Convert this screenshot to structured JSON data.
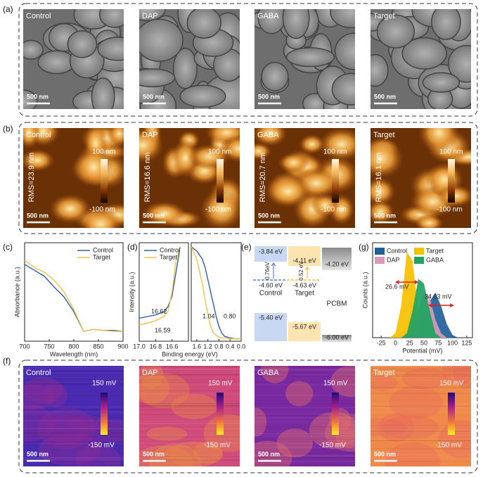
{
  "panel_labels": [
    "(a)",
    "(b)",
    "(c)",
    "(d)",
    "(e)",
    "(f)",
    "(g)"
  ],
  "sem_images": [
    {
      "label": "Control",
      "scale_bar": "500 nm"
    },
    {
      "label": "DAP",
      "scale_bar": "500 nm"
    },
    {
      "label": "GABA",
      "scale_bar": "500 nm"
    },
    {
      "label": "Target",
      "scale_bar": "500 nm"
    }
  ],
  "afm_images": [
    {
      "label": "Control",
      "rms": "RMS=23.9 nm",
      "scale_max": "100 nm",
      "scale_min": "-100 nm",
      "scale_bar": "500 nm"
    },
    {
      "label": "DAP",
      "rms": "RMS=16.6 nm",
      "scale_max": "100 nm",
      "scale_min": "-100 nm",
      "scale_bar": "500 nm"
    },
    {
      "label": "GABA",
      "rms": "RMS=20.7 nm",
      "scale_max": "100 nm",
      "scale_min": "-100 nm",
      "scale_bar": "500 nm"
    },
    {
      "label": "Target",
      "rms": "RMS=16.1 nm",
      "scale_max": "100 nm",
      "scale_min": "-100 nm",
      "scale_bar": "500 nm"
    }
  ],
  "kpfm_images": [
    {
      "label": "Control",
      "scale_max": "150 mV",
      "scale_min": "-150 mV",
      "scale_bar": "500 nm"
    },
    {
      "label": "DAP",
      "scale_max": "150 mV",
      "scale_min": "-150 mV",
      "scale_bar": "500 nm"
    },
    {
      "label": "GABA",
      "scale_max": "150 mV",
      "scale_min": "-150 mV",
      "scale_bar": "500 nm"
    },
    {
      "label": "Target",
      "scale_max": "150 mV",
      "scale_min": "-150 mV",
      "scale_bar": "500 nm"
    }
  ],
  "energy_diagram": {
    "columns": [
      {
        "name": "Control",
        "cbm": "-3.84 eV",
        "fermi": "-4.60 eV",
        "offset": "0.76eV",
        "vbm": "-5.40 eV"
      },
      {
        "name": "Target",
        "cbm": "-4.11 eV",
        "fermi": "-4.63 eV",
        "offset": "0.52 eV",
        "vbm": "-5.67 eV"
      },
      {
        "name": "PCBM",
        "cbm": "-4.20 eV",
        "vbm": "-6.00 eV"
      }
    ]
  },
  "chart_data": [
    {
      "type": "line",
      "xlabel": "Wavelength (nm)",
      "ylabel": "Absorbance (a.u.)",
      "x": [
        700,
        720,
        740,
        760,
        780,
        800,
        820,
        840,
        860,
        880,
        900
      ],
      "series": [
        {
          "name": "Control",
          "color": "#2f5fa8",
          "values": [
            0.78,
            0.72,
            0.66,
            0.55,
            0.45,
            0.3,
            0.1,
            0.12,
            0.11,
            0.11,
            0.1
          ]
        },
        {
          "name": "Target",
          "color": "#f3c24a",
          "values": [
            0.82,
            0.75,
            0.7,
            0.62,
            0.5,
            0.32,
            0.1,
            0.12,
            0.11,
            0.1,
            0.1
          ]
        }
      ],
      "xlim": [
        700,
        900
      ],
      "ylim": [
        0,
        1
      ],
      "xticks": [
        700,
        750,
        800,
        850,
        900
      ],
      "legend": "upper right"
    },
    {
      "type": "line",
      "xlabel": "Binding energy (eV)",
      "ylabel": "Intensity (a.u.)",
      "x": [
        17.0,
        16.9,
        16.8,
        16.7,
        16.65,
        16.6,
        16.55,
        16.5
      ],
      "series": [
        {
          "name": "Control",
          "color": "#2f5fa8",
          "values": [
            0.28,
            0.3,
            0.32,
            0.36,
            0.42,
            0.55,
            0.85,
            1.15
          ]
        },
        {
          "name": "Target",
          "color": "#f3c24a",
          "values": [
            0.2,
            0.22,
            0.25,
            0.3,
            0.36,
            0.6,
            1.0,
            1.15
          ]
        }
      ],
      "xlim": [
        17.0,
        16.4
      ],
      "ylim": [
        0,
        1.2
      ],
      "xticks": [
        {
          "value": 17,
          "label": "17.0"
        },
        16.8,
        16.6
      ],
      "annotations": [
        "16.62",
        "16.59"
      ],
      "legend": "upper left"
    },
    {
      "type": "line",
      "x": [
        1.8,
        1.6,
        1.4,
        1.3,
        1.2,
        1.1,
        1.0,
        0.9,
        0.8,
        0.7,
        0.6,
        0.4,
        0.2,
        0.0
      ],
      "series": [
        {
          "color": "#2f5fa8",
          "values": [
            1.15,
            1.1,
            1.0,
            0.9,
            0.75,
            0.6,
            0.45,
            0.3,
            0.18,
            0.1,
            0.06,
            0.04,
            0.03,
            0.03
          ]
        },
        {
          "color": "#f3c24a",
          "values": [
            1.15,
            1.0,
            0.7,
            0.5,
            0.33,
            0.18,
            0.1,
            0.07,
            0.05,
            0.04,
            0.04,
            0.03,
            0.03,
            0.03
          ]
        }
      ],
      "xlim": [
        1.8,
        0.0
      ],
      "ylim": [
        0,
        1.2
      ],
      "xticks": [
        1.6,
        1.2,
        0.8,
        0.4,
        {
          "value": 0,
          "label": "0.0"
        }
      ],
      "annotations": [
        "1.04",
        "0.80"
      ]
    },
    {
      "type": "area",
      "xlabel": "Potential (mV)",
      "ylabel": "Counts (a.u.)",
      "x": [
        -10,
        0,
        10,
        20,
        30,
        40,
        50,
        60,
        70,
        80,
        90,
        100,
        110
      ],
      "series": [
        {
          "name": "Control",
          "color": "#1f5f9a",
          "values": [
            0,
            0,
            0,
            0,
            0,
            0.05,
            0.2,
            0.4,
            0.5,
            0.35,
            0.15,
            0.03,
            0
          ]
        },
        {
          "name": "Target",
          "color": "#f7c000",
          "values": [
            0,
            0.05,
            0.35,
            0.95,
            0.85,
            0.3,
            0.05,
            0,
            0,
            0,
            0,
            0,
            0
          ]
        },
        {
          "name": "DAP",
          "color": "#d99ab8",
          "values": [
            0,
            0,
            0,
            0,
            0.1,
            0.3,
            0.5,
            0.45,
            0.2,
            0.05,
            0,
            0,
            0
          ]
        },
        {
          "name": "GABA",
          "color": "#1fa35f",
          "values": [
            0,
            0,
            0,
            0.05,
            0.3,
            0.65,
            0.6,
            0.3,
            0.05,
            0,
            0,
            0,
            0
          ]
        }
      ],
      "xlim": [
        -40,
        135
      ],
      "ylim": [
        0,
        1.05
      ],
      "xticks": [
        -25,
        0,
        25,
        50,
        75,
        100,
        125
      ],
      "annotations": [
        "26.6 mV",
        "34.03 mV"
      ],
      "legend": "upper left"
    }
  ]
}
